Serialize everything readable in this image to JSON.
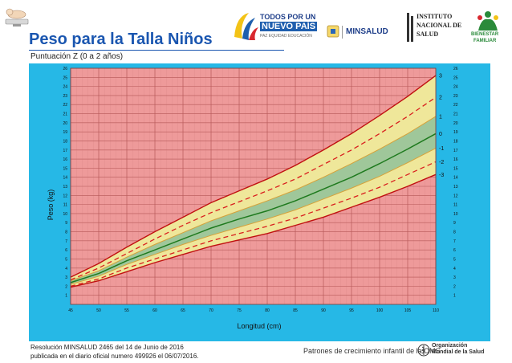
{
  "header": {
    "title": "Peso para la Talla Niños",
    "subtitle": "Puntuación Z (0 a 2 años)"
  },
  "logos": {
    "todos_line1": "TODOS POR UN",
    "todos_line2": "NUEVO PAÍS",
    "todos_line3": "PAZ  EQUIDAD  EDUCACIÓN",
    "minsalud": "MINSALUD",
    "ins_line1": "INSTITUTO",
    "ins_line2": "NACIONAL DE",
    "ins_line3": "SALUD",
    "icbf_line1": "BIENESTAR",
    "icbf_line2": "FAMILIAR"
  },
  "footer": {
    "line1": "Resolución MINSALUD 2465 del 14 de Junio de 2016",
    "line2": "publicada en el diario oficial numero 499926 el 06/07/2016.",
    "who_text": "Patrones de crecimiento infantil de la OMS",
    "oms_line1": "Organización",
    "oms_line2": "Mundial de la Salud"
  },
  "colors": {
    "frame": "#26b8e6",
    "red_zone": "#ee9a9a",
    "yellow_zone": "#efe79a",
    "green_zone": "#9fc79a",
    "median": "#1e7a1e",
    "sd2": "#d91e1e",
    "sd3": "#c01010"
  },
  "chart_data": {
    "type": "line",
    "xlabel": "Longitud (cm)",
    "ylabel": "Peso (kg)",
    "xlim": [
      45,
      110
    ],
    "ylim": [
      0,
      26
    ],
    "x_ticks": [
      45,
      50,
      55,
      60,
      65,
      70,
      75,
      80,
      85,
      90,
      95,
      100,
      105,
      110
    ],
    "y_ticks": [
      1,
      2,
      3,
      4,
      5,
      6,
      7,
      8,
      9,
      10,
      11,
      12,
      13,
      14,
      15,
      16,
      17,
      18,
      19,
      20,
      21,
      22,
      23,
      24,
      25,
      26
    ],
    "grid": true,
    "x": [
      45,
      50,
      55,
      60,
      65,
      70,
      75,
      80,
      85,
      90,
      95,
      100,
      105,
      110
    ],
    "series": [
      {
        "name": "3",
        "style": "solid",
        "values": [
          3.0,
          4.5,
          6.3,
          8.0,
          9.6,
          11.2,
          12.5,
          13.8,
          15.3,
          17.0,
          18.8,
          20.8,
          22.9,
          25.2
        ]
      },
      {
        "name": "2",
        "style": "dashed",
        "values": [
          2.7,
          4.0,
          5.6,
          7.2,
          8.7,
          10.1,
          11.3,
          12.5,
          13.8,
          15.4,
          17.0,
          18.8,
          20.7,
          22.8
        ]
      },
      {
        "name": "1",
        "style": "solid",
        "values": [
          2.6,
          3.7,
          5.2,
          6.6,
          7.9,
          9.2,
          10.3,
          11.4,
          12.6,
          14.0,
          15.5,
          17.1,
          18.8,
          20.7
        ]
      },
      {
        "name": "0",
        "style": "solid",
        "values": [
          2.4,
          3.4,
          4.8,
          6.0,
          7.2,
          8.4,
          9.4,
          10.3,
          11.4,
          12.7,
          14.0,
          15.5,
          17.1,
          18.8
        ]
      },
      {
        "name": "-1",
        "style": "solid",
        "values": [
          2.2,
          3.1,
          4.4,
          5.5,
          6.6,
          7.6,
          8.5,
          9.4,
          10.4,
          11.6,
          12.8,
          14.1,
          15.6,
          17.2
        ]
      },
      {
        "name": "-2",
        "style": "dashed",
        "values": [
          2.0,
          2.8,
          4.0,
          5.0,
          6.0,
          7.0,
          7.8,
          8.6,
          9.5,
          10.6,
          11.7,
          12.9,
          14.3,
          15.7
        ]
      },
      {
        "name": "-3",
        "style": "solid",
        "values": [
          1.9,
          2.6,
          3.6,
          4.6,
          5.5,
          6.4,
          7.1,
          7.8,
          8.7,
          9.6,
          10.7,
          11.8,
          13.0,
          14.3
        ]
      }
    ]
  }
}
